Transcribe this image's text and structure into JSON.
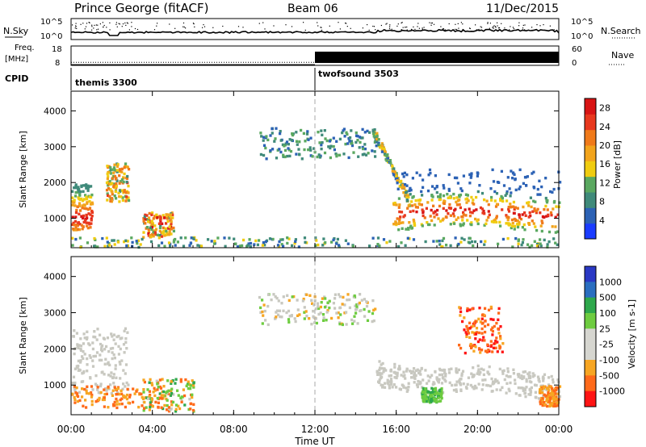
{
  "header": {
    "station": "Prince George (fitACF)",
    "beam": "Beam 06",
    "date": "11/Dec/2015"
  },
  "noise_panel": {
    "left_label": "N.Sky",
    "right_label": "N.Search",
    "left_ticks": [
      "10^5",
      "10^0"
    ],
    "right_ticks": [
      "10^5",
      "10^0"
    ]
  },
  "freq_panel": {
    "left_label_1": "Freq.",
    "left_label_2": "[MHz]",
    "left_ticks": [
      "18",
      "8"
    ],
    "right_label": "Nave",
    "right_ticks": [
      "60",
      "0"
    ],
    "freq_mhz": 10.8,
    "nave_after_switch": 55
  },
  "cpid": {
    "label": "CPID",
    "programs": [
      {
        "name": "themis 3300",
        "start_hour": 0
      },
      {
        "name": "twofsound 3503",
        "start_hour": 12
      }
    ]
  },
  "time_axis": {
    "label": "Time UT",
    "range_hours": [
      0,
      24
    ],
    "ticks": [
      {
        "hour": 0,
        "label": "00:00"
      },
      {
        "hour": 4,
        "label": "04:00"
      },
      {
        "hour": 8,
        "label": "08:00"
      },
      {
        "hour": 12,
        "label": "12:00"
      },
      {
        "hour": 16,
        "label": "16:00"
      },
      {
        "hour": 20,
        "label": "20:00"
      },
      {
        "hour": 24,
        "label": "00:00"
      }
    ]
  },
  "colors": {
    "power_scale": [
      "#1a3cff",
      "#2c62b5",
      "#3f8a7a",
      "#5aa860",
      "#f0cc10",
      "#f2a41c",
      "#f07a1a",
      "#e8381e",
      "#d81414"
    ],
    "velocity_scale": [
      "#ff1414",
      "#ff6a1a",
      "#f7a623",
      "#d6d6d0",
      "#d6d6d0",
      "#6ecc40",
      "#2ea84c",
      "#2a6ec0",
      "#2a38c4"
    ],
    "velocity_near_zero": "#c8c8c0"
  },
  "chart_data": [
    {
      "type": "heatmap",
      "name": "power",
      "xlabel": "Time UT",
      "ylabel": "Slant Range [km]",
      "xlim": [
        0,
        24
      ],
      "ylim": [
        180,
        4550
      ],
      "yticks": [
        1000,
        2000,
        3000,
        4000
      ],
      "colorbar": {
        "label": "Power [dB]",
        "range": [
          0,
          30
        ],
        "ticks": [
          4,
          8,
          12,
          16,
          20,
          24,
          28
        ]
      },
      "series": [
        {
          "feature": "dense auroral/E echoes 00-01 UT",
          "x": [
            0.0,
            1.0
          ],
          "range_km": [
            700,
            2000
          ],
          "power_db": [
            8,
            28
          ]
        },
        {
          "feature": "patch near 02:30 UT",
          "x": [
            1.7,
            2.8
          ],
          "range_km": [
            1500,
            2600
          ],
          "power_db": [
            8,
            24
          ]
        },
        {
          "feature": "near-range echoes 03:30-05:00 UT",
          "x": [
            3.5,
            5.0
          ],
          "range_km": [
            500,
            1200
          ],
          "power_db": [
            8,
            28
          ]
        },
        {
          "feature": "far-range band 09-15 UT",
          "x": [
            9.2,
            15.0
          ],
          "range_km": [
            2700,
            3550
          ],
          "power_db": [
            4,
            12
          ]
        },
        {
          "feature": "descending arc 15-16.5 UT",
          "x": [
            14.8,
            16.6
          ],
          "range_km": [
            1400,
            3500
          ],
          "power_db": [
            4,
            20
          ]
        },
        {
          "feature": "persistent band 16-24 UT",
          "x": [
            15.8,
            24.0
          ],
          "range_km": [
            500,
            2100
          ],
          "power_db": [
            4,
            28
          ]
        },
        {
          "feature": "ground/near-range scatter all day",
          "x": [
            0.0,
            24.0
          ],
          "range_km": [
            180,
            500
          ],
          "power_db": [
            4,
            16
          ]
        }
      ]
    },
    {
      "type": "heatmap",
      "name": "velocity",
      "xlabel": "Time UT",
      "ylabel": "Slant Range [km]",
      "xlim": [
        0,
        24
      ],
      "ylim": [
        180,
        4550
      ],
      "yticks": [
        1000,
        2000,
        3000,
        4000
      ],
      "colorbar": {
        "label": "Velocity [m s-1]",
        "levels": [
          1000,
          500,
          100,
          25,
          -25,
          -100,
          -500,
          -1000
        ]
      },
      "series": [
        {
          "feature": "near-zero (grey) scatter 00-03 UT",
          "x": [
            0.0,
            2.8
          ],
          "range_km": [
            800,
            2600
          ],
          "velocity_ms": [
            -25,
            25
          ]
        },
        {
          "feature": "negative velocities near range 00-04 UT",
          "x": [
            0.0,
            4.5
          ],
          "range_km": [
            400,
            1000
          ],
          "velocity_ms": [
            -500,
            -100
          ]
        },
        {
          "feature": "mixed green/orange 04-06 UT",
          "x": [
            3.5,
            6.0
          ],
          "range_km": [
            300,
            1200
          ],
          "velocity_ms": [
            -500,
            500
          ]
        },
        {
          "feature": "far-range grey/orange 09-15 UT",
          "x": [
            9.2,
            15.0
          ],
          "range_km": [
            2700,
            3550
          ],
          "velocity_ms": [
            -100,
            100
          ]
        },
        {
          "feature": "grey descending band 15-24 UT",
          "x": [
            15.0,
            24.0
          ],
          "range_km": [
            800,
            2000
          ],
          "velocity_ms": [
            -25,
            25
          ]
        },
        {
          "feature": "green patch ~17:30 UT",
          "x": [
            17.2,
            18.2
          ],
          "range_km": [
            550,
            950
          ],
          "velocity_ms": [
            100,
            500
          ]
        },
        {
          "feature": "red/orange cluster 19-21 UT",
          "x": [
            19.0,
            21.2
          ],
          "range_km": [
            1900,
            3200
          ],
          "velocity_ms": [
            -1000,
            -100
          ]
        },
        {
          "feature": "orange near range 23-24 UT",
          "x": [
            23.0,
            24.0
          ],
          "range_km": [
            450,
            1000
          ],
          "velocity_ms": [
            -500,
            -100
          ]
        }
      ]
    }
  ]
}
